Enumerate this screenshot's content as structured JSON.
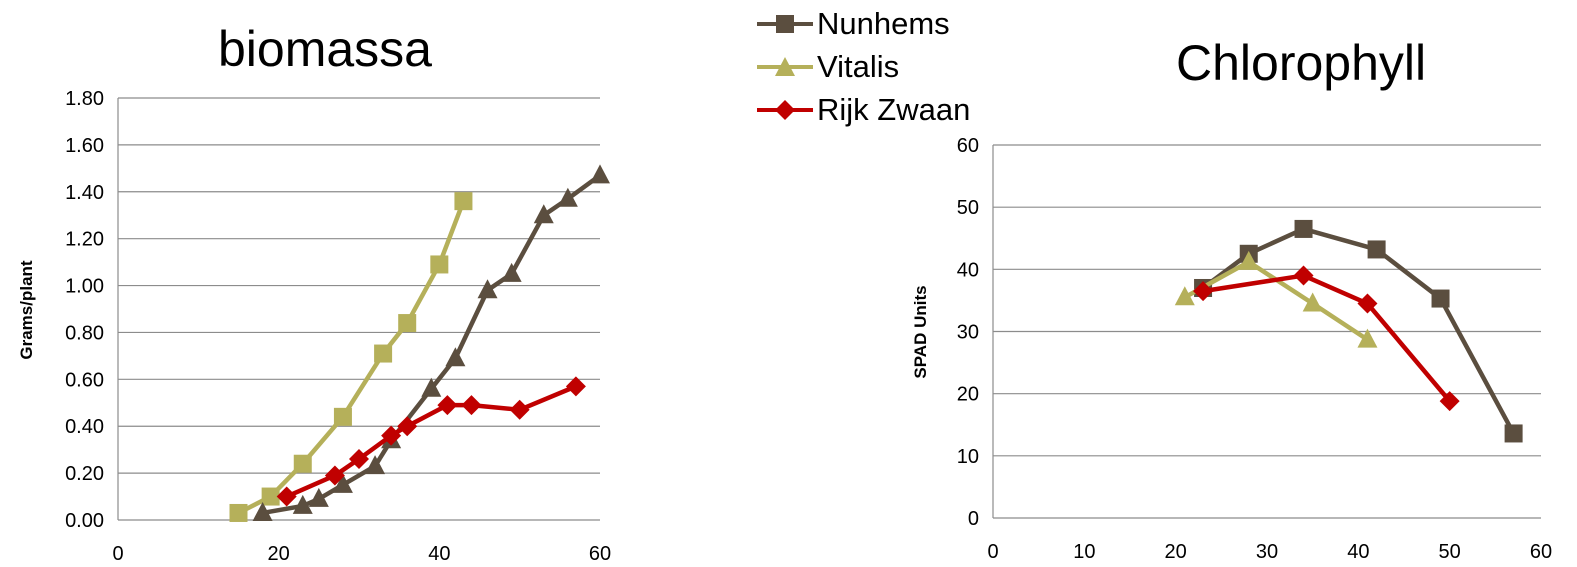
{
  "legend": {
    "items": [
      {
        "name": "Nunhems",
        "color": "#5b4e3f",
        "marker": "square"
      },
      {
        "name": "Vitalis",
        "color": "#b5b05a",
        "marker": "triangle"
      },
      {
        "name": "Rijk Zwaan",
        "color": "#c00000",
        "marker": "diamond"
      }
    ]
  },
  "chart_data": [
    {
      "type": "scatter",
      "title": "biomassa",
      "xlabel": "",
      "ylabel": "Grams/plant",
      "xlim": [
        0,
        60
      ],
      "ylim": [
        0,
        1.8
      ],
      "xticks": [
        "0",
        "20",
        "40",
        "60"
      ],
      "yticks": [
        "0.00",
        "0.20",
        "0.40",
        "0.60",
        "0.80",
        "1.00",
        "1.20",
        "1.40",
        "1.60",
        "1.80"
      ],
      "grid": "horizontal",
      "series": [
        {
          "color": "#b5b05a",
          "marker": "square",
          "x": [
            15,
            19,
            23,
            28,
            33,
            36,
            40,
            43
          ],
          "y": [
            0.03,
            0.1,
            0.24,
            0.44,
            0.71,
            0.84,
            1.09,
            1.36
          ]
        },
        {
          "color": "#5b4e3f",
          "marker": "triangle",
          "x": [
            18,
            23,
            25,
            28,
            32,
            34,
            39,
            42,
            46,
            49,
            53,
            56,
            60
          ],
          "y": [
            0.03,
            0.06,
            0.09,
            0.15,
            0.23,
            0.34,
            0.56,
            0.69,
            0.98,
            1.05,
            1.3,
            1.37,
            1.47
          ]
        },
        {
          "color": "#c00000",
          "marker": "diamond",
          "x": [
            21,
            27,
            30,
            34,
            36,
            41,
            44,
            50,
            57
          ],
          "y": [
            0.1,
            0.19,
            0.26,
            0.36,
            0.4,
            0.49,
            0.49,
            0.47,
            0.57
          ]
        }
      ]
    },
    {
      "type": "line",
      "title": "Chlorophyll",
      "xlabel": "",
      "ylabel": "SPAD Units",
      "xlim": [
        0,
        60
      ],
      "ylim": [
        0,
        60
      ],
      "xticks": [
        "0",
        "10",
        "20",
        "30",
        "40",
        "50",
        "60"
      ],
      "yticks": [
        "0",
        "10",
        "20",
        "30",
        "40",
        "50",
        "60"
      ],
      "grid": "horizontal",
      "series": [
        {
          "name": "Nunhems",
          "color": "#5b4e3f",
          "marker": "square",
          "x": [
            23,
            28,
            34,
            42,
            49,
            57
          ],
          "y": [
            37,
            42.5,
            46.5,
            43.2,
            35.3,
            13.6
          ]
        },
        {
          "name": "Vitalis",
          "color": "#b5b05a",
          "marker": "triangle",
          "x": [
            21,
            28,
            35,
            41
          ],
          "y": [
            35.5,
            41.2,
            34.5,
            28.7
          ]
        },
        {
          "name": "Rijk Zwaan",
          "color": "#c00000",
          "marker": "diamond",
          "x": [
            23,
            34,
            41,
            50
          ],
          "y": [
            36.5,
            39,
            34.5,
            18.8
          ]
        }
      ]
    }
  ]
}
